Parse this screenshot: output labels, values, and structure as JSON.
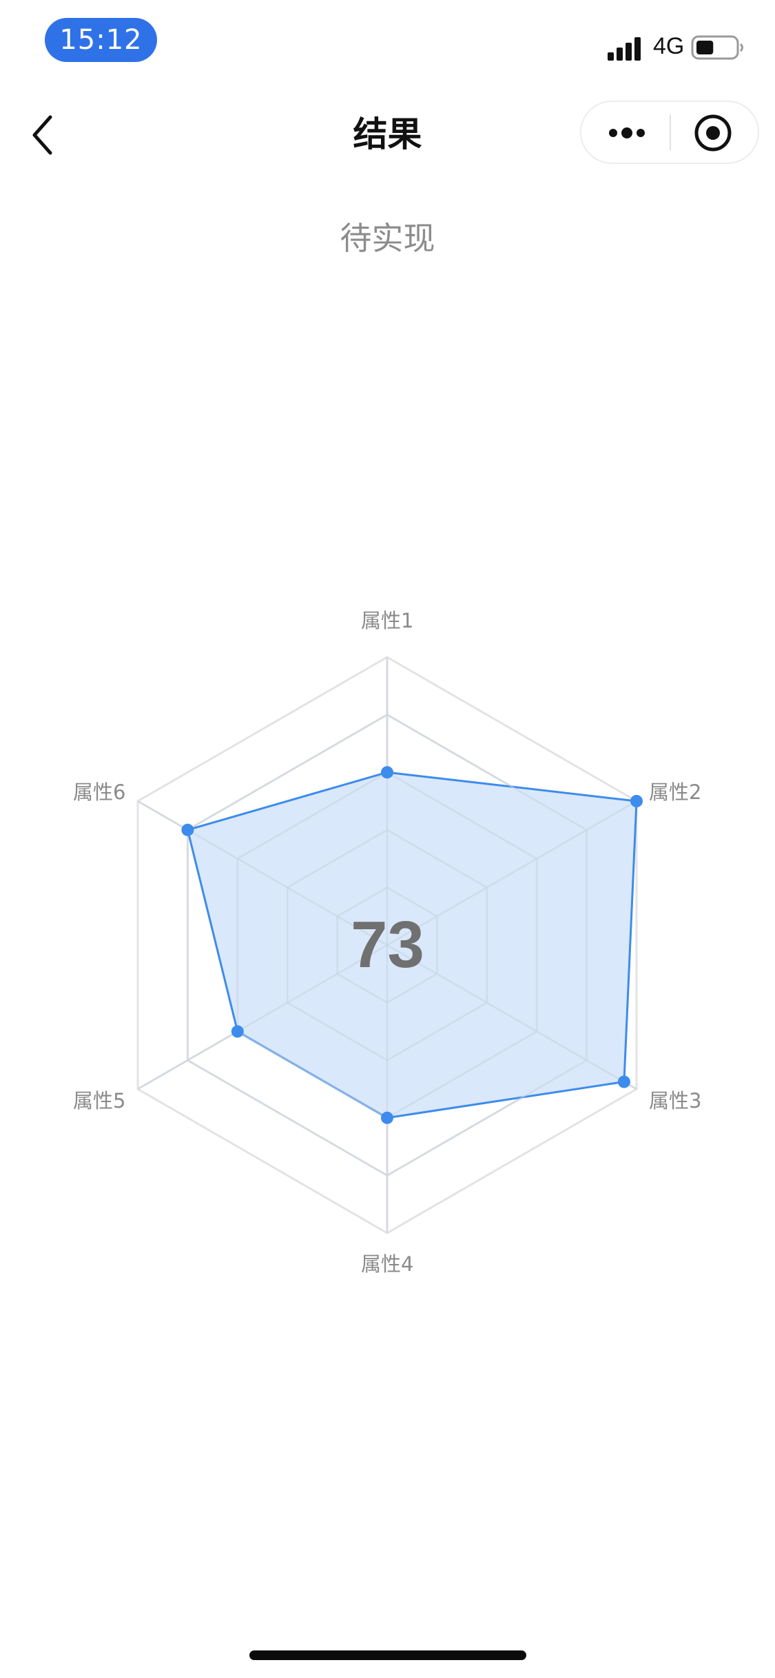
{
  "status_bar": {
    "time": "15:12",
    "network": "4G",
    "battery_level": 0.45
  },
  "nav": {
    "title": "结果",
    "back_icon": "chevron-left-icon",
    "more_icon": "more-dots-icon",
    "close_icon": "target-close-icon"
  },
  "subtitle": "待实现",
  "chart_data": {
    "type": "radar",
    "score": "73",
    "axes": [
      "属性1",
      "属性2",
      "属性3",
      "属性4",
      "属性5",
      "属性6"
    ],
    "values": [
      0.6,
      1.0,
      0.95,
      0.6,
      0.6,
      0.8
    ],
    "range": [
      0,
      1
    ],
    "rings": 5,
    "colors": {
      "fill": "#d5e6fb",
      "stroke": "#3d8bec",
      "grid": "#e3e3e3",
      "grid_inner": "#c9d3e0"
    }
  },
  "colors": {
    "accent": "#2f72e8"
  }
}
